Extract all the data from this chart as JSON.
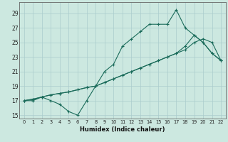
{
  "xlabel": "Humidex (Indice chaleur)",
  "bg_color": "#cce8e0",
  "grid_color": "#aacccc",
  "line_color": "#1a6b5a",
  "xlim": [
    -0.5,
    22.5
  ],
  "ylim": [
    14.5,
    30.5
  ],
  "xticks": [
    0,
    1,
    2,
    3,
    4,
    5,
    6,
    7,
    8,
    9,
    10,
    11,
    12,
    13,
    14,
    15,
    16,
    17,
    18,
    19,
    20,
    21,
    22
  ],
  "yticks": [
    15,
    17,
    19,
    21,
    23,
    25,
    27,
    29
  ],
  "series": [
    [
      17.0,
      17.0,
      17.5,
      17.0,
      16.5,
      15.5,
      15.0,
      17.0,
      19.0,
      21.0,
      22.0,
      24.5,
      25.5,
      26.5,
      27.5,
      27.5,
      27.5,
      29.5,
      27.0,
      26.0,
      25.0,
      23.5,
      22.5
    ],
    [
      17.0,
      17.2,
      17.5,
      17.8,
      18.0,
      18.2,
      18.5,
      18.8,
      19.0,
      19.5,
      20.0,
      20.5,
      21.0,
      21.5,
      22.0,
      22.5,
      23.0,
      23.5,
      24.0,
      25.0,
      25.5,
      25.0,
      22.5
    ],
    [
      17.0,
      17.2,
      17.5,
      17.8,
      18.0,
      18.2,
      18.5,
      18.8,
      19.0,
      19.5,
      20.0,
      20.5,
      21.0,
      21.5,
      22.0,
      22.5,
      23.0,
      23.5,
      24.5,
      26.0,
      25.0,
      23.5,
      22.5
    ]
  ]
}
